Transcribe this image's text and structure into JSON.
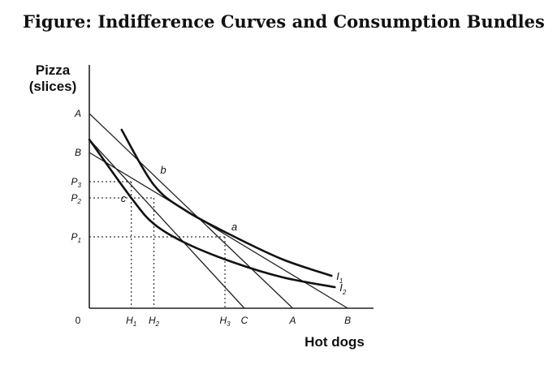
{
  "page": {
    "title": "Figure: Indifference Curves and Consumption Bundles"
  },
  "chart_data": {
    "type": "line",
    "title": "Figure: Indifference Curves and Consumption Bundles",
    "xlabel": "Hot dogs",
    "ylabel_line1": "Pizza",
    "ylabel_line2": "(slices)",
    "origin_label": "0",
    "x_ticks": [
      {
        "key": "H1",
        "main": "H",
        "sub": "1",
        "x": 1.3
      },
      {
        "key": "H2",
        "main": "H",
        "sub": "2",
        "x": 2.0
      },
      {
        "key": "H3",
        "main": "H",
        "sub": "3",
        "x": 4.2
      },
      {
        "key": "C",
        "main": "C",
        "sub": "",
        "x": 4.8
      },
      {
        "key": "A",
        "main": "A",
        "sub": "",
        "x": 6.3
      },
      {
        "key": "B",
        "main": "B",
        "sub": "",
        "x": 8.0
      }
    ],
    "y_ticks": [
      {
        "key": "A",
        "main": "A",
        "sub": "",
        "y": 6.0
      },
      {
        "key": "B",
        "main": "B",
        "sub": "",
        "y": 4.8
      },
      {
        "key": "P3",
        "main": "P",
        "sub": "3",
        "y": 3.9
      },
      {
        "key": "P2",
        "main": "P",
        "sub": "2",
        "y": 3.4
      },
      {
        "key": "P1",
        "main": "P",
        "sub": "1",
        "y": 2.2
      }
    ],
    "xlim": [
      0,
      8.8
    ],
    "ylim": [
      0,
      7.5
    ],
    "budget_lines": [
      {
        "key": "AA",
        "from": [
          0,
          6.0
        ],
        "to": [
          6.3,
          0
        ]
      },
      {
        "key": "BB",
        "from": [
          0,
          4.8
        ],
        "to": [
          8.0,
          0
        ]
      },
      {
        "key": "C",
        "from": [
          0,
          5.2
        ],
        "to": [
          4.8,
          0
        ]
      }
    ],
    "indifference_curves": [
      {
        "name": "I",
        "sub": "1",
        "points": [
          [
            1.0,
            5.5
          ],
          [
            2.0,
            3.8
          ],
          [
            3.0,
            3.0
          ],
          [
            4.5,
            2.2
          ],
          [
            6.0,
            1.5
          ],
          [
            7.5,
            1.0
          ]
        ]
      },
      {
        "name": "I",
        "sub": "2",
        "points": [
          [
            0.0,
            5.2
          ],
          [
            1.3,
            3.4
          ],
          [
            2.0,
            2.6
          ],
          [
            3.0,
            2.0
          ],
          [
            4.5,
            1.4
          ],
          [
            6.0,
            0.95
          ],
          [
            7.6,
            0.65
          ]
        ]
      }
    ],
    "bundle_points": [
      {
        "label": "a",
        "x": 4.2,
        "y": 2.2
      },
      {
        "label": "b",
        "x": 2.0,
        "y": 3.9
      },
      {
        "label": "c",
        "x": 1.3,
        "y": 3.4
      }
    ],
    "guides": [
      {
        "label": "H1-P3",
        "x": 1.3,
        "y": 3.9
      },
      {
        "label": "H2-P2",
        "x": 2.0,
        "y": 3.4
      },
      {
        "label": "H3-P1",
        "x": 4.2,
        "y": 2.2
      }
    ],
    "grid": false,
    "legend": "none"
  }
}
